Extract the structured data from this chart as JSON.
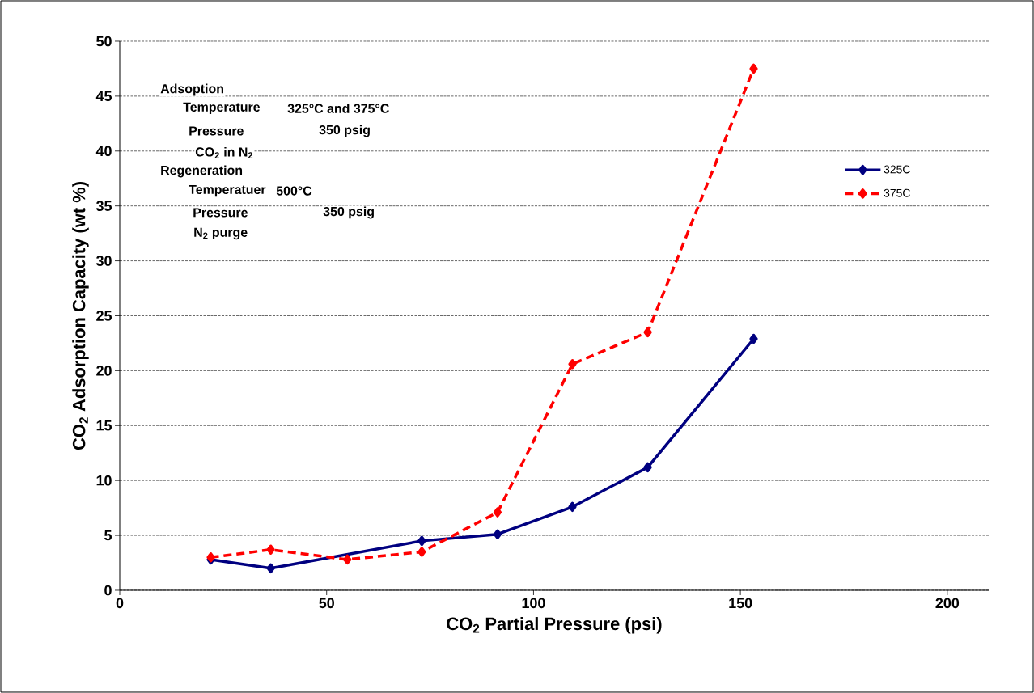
{
  "chart_data": {
    "type": "line",
    "xlabel": "CO$_{2}$ Partial Pressure (psi)",
    "ylabel": "CO$_{2}$ Adsorption Capacity (wt %)",
    "xlim": [
      0,
      210
    ],
    "xticks": [
      0,
      50,
      100,
      150,
      200
    ],
    "ylim": [
      0,
      50
    ],
    "yticks": [
      0,
      5,
      10,
      15,
      20,
      25,
      30,
      35,
      40,
      45,
      50
    ],
    "grid": "y",
    "legend": "right",
    "marker": "diamond",
    "series": [
      {
        "name": "325C",
        "color": "#000080",
        "line_style": "solid",
        "x": [
          22,
          36.5,
          73,
          91.3,
          109.4,
          127.6,
          153.2
        ],
        "values": [
          2.8,
          2.0,
          4.5,
          5.1,
          7.6,
          11.2,
          22.9
        ]
      },
      {
        "name": "375C",
        "color": "#ff0000",
        "line_style": "dashed",
        "x": [
          22,
          36.5,
          55,
          73,
          91.3,
          109.4,
          127.6,
          153.2
        ],
        "values": [
          3.0,
          3.7,
          2.8,
          3.5,
          7.1,
          20.6,
          23.5,
          47.5
        ]
      }
    ],
    "annotations": [
      "Adsoption",
      "Temperature",
      "325°C and 375°C",
      "Pressure",
      "350 psig",
      "CO$_{2}$ in N$_{2}$",
      "Regeneration",
      "Temperatuer",
      "500°C",
      "Pressure",
      "350 psig",
      "N$_{2}$ purge"
    ]
  }
}
